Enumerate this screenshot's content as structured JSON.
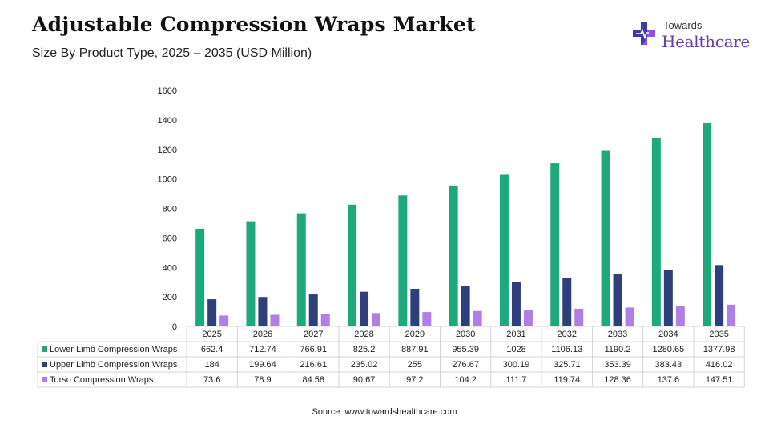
{
  "header": {
    "title": "Adjustable Compression Wraps Market",
    "subtitle": "Size By Product Type, 2025 – 2035 (USD Million)"
  },
  "logo": {
    "top_text": "Towards",
    "main_text": "Healthcare",
    "colors": {
      "cross_left": "#3b3ba8",
      "cross_right": "#9b4fd6",
      "text": "#6b3fa0"
    }
  },
  "source": "Source: www.towardshealthcare.com",
  "chart_data": {
    "type": "bar",
    "categories": [
      "2025",
      "2026",
      "2027",
      "2028",
      "2029",
      "2030",
      "2031",
      "2032",
      "2033",
      "2034",
      "2035"
    ],
    "series": [
      {
        "name": "Lower Limb Compression Wraps",
        "color": "#1ea97c",
        "values": [
          662.4,
          712.74,
          766.91,
          825.2,
          887.91,
          955.39,
          1028,
          1106.13,
          1190.2,
          1280.65,
          1377.98
        ]
      },
      {
        "name": "Upper Limb Compression Wraps",
        "color": "#2f3f7c",
        "values": [
          184,
          199.64,
          216.61,
          235.02,
          255,
          276.67,
          300.19,
          325.71,
          353.39,
          383.43,
          416.02
        ]
      },
      {
        "name": "Torso Compression Wraps",
        "color": "#b07fe6",
        "values": [
          73.6,
          78.9,
          84.58,
          90.67,
          97.2,
          104.2,
          111.7,
          119.74,
          128.36,
          137.6,
          147.51
        ]
      }
    ],
    "table_labels": [
      [
        "662.4",
        "712.74",
        "766.91",
        "825.2",
        "887.91",
        "955.39",
        "1028",
        "1106.13",
        "1190.2",
        "1280.65",
        "1377.98"
      ],
      [
        "184",
        "199.64",
        "216.61",
        "235.02",
        "255",
        "276.67",
        "300.19",
        "325.71",
        "353.39",
        "383.43",
        "416.02"
      ],
      [
        "73.6",
        "78.9",
        "84.58",
        "90.67",
        "97.2",
        "104.2",
        "111.7",
        "119.74",
        "128.36",
        "137.6",
        "147.51"
      ]
    ],
    "ylim": [
      0,
      1600
    ],
    "yticks": [
      "0",
      "200",
      "400",
      "600",
      "800",
      "1000",
      "1200",
      "1400",
      "1600"
    ],
    "xlabel": "",
    "ylabel": "",
    "grid": false,
    "legend_placement": "data-table-left"
  }
}
